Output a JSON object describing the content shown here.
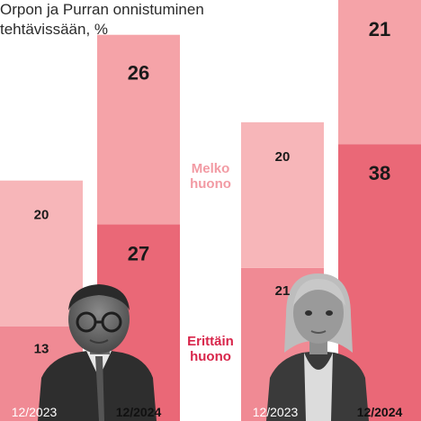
{
  "title": "Orpon ja Purran onnistuminen tehtävissään, %",
  "colors": {
    "melko_huono_light": "#f7b6b9",
    "erittain_huono_light": "#f08a94",
    "melko_huono_dark": "#f5a3a8",
    "erittain_huono_dark": "#ea6877",
    "label_melko": "#f29aa3",
    "label_erittain": "#d8254a"
  },
  "chart_data": {
    "type": "bar",
    "stacked": true,
    "title": "Orpon ja Purran onnistuminen tehtävissään, %",
    "groups": [
      {
        "person": "Petteri Orpo",
        "categories": [
          "12/2023",
          "12/2024"
        ],
        "series": [
          {
            "name": "Erittäin huono",
            "values": [
              13,
              27
            ]
          },
          {
            "name": "Melko huono",
            "values": [
              20,
              26
            ]
          }
        ]
      },
      {
        "person": "Riikka Purra",
        "categories": [
          "12/2023",
          "12/2024"
        ],
        "series": [
          {
            "name": "Erittäin huono",
            "values": [
              21,
              38
            ]
          },
          {
            "name": "Melko huono",
            "values": [
              20,
              21
            ]
          }
        ]
      }
    ],
    "series_labels": {
      "melko": [
        "Melko",
        "huono"
      ],
      "erittain": [
        "Erittäin",
        "huono"
      ]
    },
    "grid": false,
    "legend": "between-groups"
  }
}
